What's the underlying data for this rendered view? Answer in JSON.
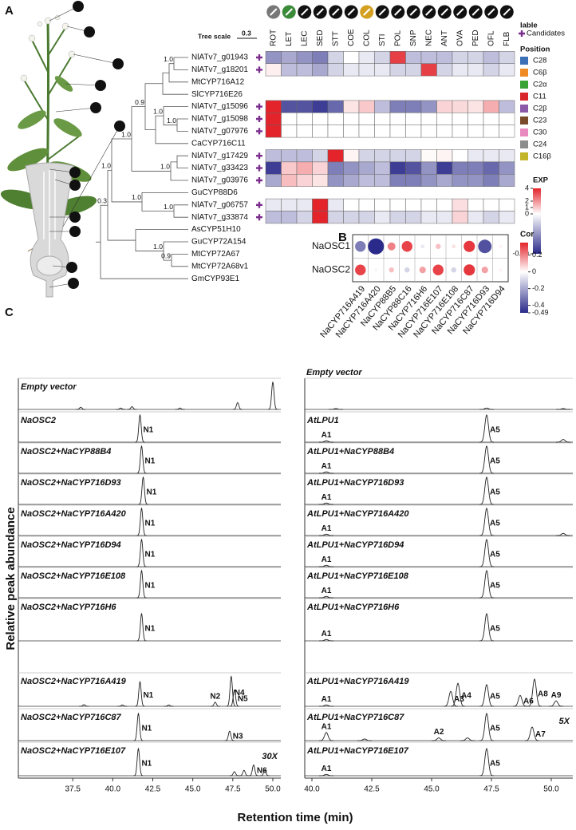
{
  "panel_a": {
    "label": "A",
    "tree_scale": {
      "title": "Tree scale",
      "value": "0.3"
    },
    "columns": [
      "ROT",
      "LET",
      "LEC",
      "SED",
      "STT",
      "COE",
      "COL",
      "STI",
      "POL",
      "SNP",
      "NEC",
      "ANT",
      "OVA",
      "PED",
      "OFL",
      "FLB"
    ],
    "leaves": [
      {
        "name": "NlATv7_g01943",
        "candidate": true,
        "exp": [
          -0.5,
          -0.4,
          -0.5,
          -0.6,
          -0.2,
          0,
          -0.1,
          -0.2,
          3.5,
          -0.3,
          -0.3,
          -0.3,
          -0.2,
          -0.2,
          -0.3,
          -0.2
        ]
      },
      {
        "name": "NlATv7_g18201",
        "candidate": true,
        "exp": [
          0.3,
          -0.3,
          -0.3,
          -0.4,
          -0.2,
          -0.1,
          -0.1,
          -0.1,
          -0.2,
          -0.2,
          3.5,
          -0.2,
          -0.1,
          -0.1,
          -0.2,
          -0.1
        ]
      },
      {
        "name": "MtCYP716A12",
        "position": "C28"
      },
      {
        "name": "SlCYP716E26",
        "position": "C6β"
      },
      {
        "name": "NlATv7_g15096",
        "candidate": true,
        "exp": [
          4,
          -0.8,
          -0.8,
          -0.9,
          -0.7,
          0.5,
          1,
          -0.3,
          -0.6,
          -0.6,
          -0.5,
          0.8,
          0.7,
          0.5,
          1.5,
          -0.3
        ]
      },
      {
        "name": "NlATv7_g15098",
        "candidate": true,
        "exp": [
          4,
          0,
          0,
          0,
          0,
          0,
          0,
          0,
          0,
          0,
          0,
          0,
          0,
          0,
          0,
          0
        ]
      },
      {
        "name": "NlATv7_g07976",
        "candidate": true,
        "exp": [
          4,
          0,
          0,
          0,
          0,
          0,
          0,
          0,
          0,
          0,
          0,
          0,
          0,
          0,
          0,
          0
        ]
      },
      {
        "name": "CaCYP716C11",
        "position": "C2α"
      },
      {
        "name": "NlATv7_g17429",
        "candidate": true,
        "exp": [
          -0.3,
          -0.3,
          -0.3,
          -0.2,
          4,
          0.2,
          -0.2,
          -0.2,
          -0.2,
          -0.2,
          0.1,
          0.2,
          0,
          -0.1,
          -0.1,
          -0.1
        ]
      },
      {
        "name": "NlATv7_g33423",
        "candidate": true,
        "exp": [
          -0.9,
          1,
          1.5,
          0.8,
          -0.6,
          -0.5,
          -0.4,
          -0.3,
          -0.9,
          -0.8,
          -0.5,
          -0.9,
          -0.6,
          -0.6,
          -0.7,
          -0.5
        ]
      },
      {
        "name": "NlATv7_g03976",
        "candidate": true,
        "exp": [
          -0.4,
          1.2,
          0.8,
          0.5,
          -0.5,
          -0.4,
          -0.3,
          -0.3,
          -0.6,
          -0.6,
          -0.5,
          -0.4,
          -0.5,
          -0.5,
          -0.6,
          -0.4
        ]
      },
      {
        "name": "GuCYP88D6",
        "position": "C11"
      },
      {
        "name": "NlATv7_g06757",
        "candidate": true,
        "exp": [
          -0.1,
          -0.1,
          -0.1,
          4,
          -0.1,
          0,
          0,
          0,
          0,
          0,
          0,
          0,
          0.6,
          0,
          0,
          0
        ]
      },
      {
        "name": "NlATv7_g33874",
        "candidate": true,
        "exp": [
          -0.3,
          -0.3,
          -0.2,
          4,
          -0.2,
          -0.2,
          -0.2,
          -0.1,
          -0.2,
          -0.2,
          -0.1,
          -0.1,
          0.8,
          -0.1,
          -0.2,
          -0.1
        ]
      },
      {
        "name": "AsCYP51H10",
        "position": "C16β"
      },
      {
        "name": "GuCYP72A154",
        "position": "C30"
      },
      {
        "name": "MtCYP72A67",
        "position": "C2β"
      },
      {
        "name": "MtCYP72A68v1",
        "position": "C23"
      },
      {
        "name": "GmCYP93E1",
        "position": "C24"
      }
    ],
    "support": [
      "1.0",
      "1.0",
      "1.0",
      "0.9",
      "1.0",
      "1.0",
      "1.0",
      "1.0",
      "1.0",
      "0.9",
      "1.0",
      "0.3"
    ],
    "legend": {
      "candidate_title": "lable",
      "candidate_label": "Candidates",
      "candidate_color": "#7b2d8e",
      "position_title": "Position",
      "positions": [
        {
          "label": "C28",
          "color": "#3b6fb6"
        },
        {
          "label": "C6β",
          "color": "#f08a24"
        },
        {
          "label": "C2α",
          "color": "#3aa335"
        },
        {
          "label": "C11",
          "color": "#d8262a"
        },
        {
          "label": "C2β",
          "color": "#8a5aa8"
        },
        {
          "label": "C23",
          "color": "#7a4b2a"
        },
        {
          "label": "C30",
          "color": "#e889c0"
        },
        {
          "label": "C24",
          "color": "#8c8c8c"
        },
        {
          "label": "C16β",
          "color": "#c3b52a"
        }
      ]
    },
    "exp_scale": {
      "title": "EXP",
      "lim": [
        -0.99,
        4
      ],
      "ticks": [
        4,
        2,
        1,
        0,
        -0.99
      ],
      "low_color": "#2a2a8a",
      "mid_color": "#ffffff",
      "high_color": "#e3242b"
    }
  },
  "panel_b": {
    "label": "B",
    "rows": [
      "NaOSC1",
      "NaOSC2"
    ],
    "columns": [
      "NaCYP716A419",
      "NaCYP716A420",
      "NaCYP88B5",
      "NaCYP88C16",
      "NaCYP716H6",
      "NaCYP716E107",
      "NaCYP716E108",
      "NaCYP716C87",
      "NaCYP716D93",
      "NaCYP716D94"
    ],
    "values": [
      [
        -0.3,
        -0.49,
        0.2,
        0.3,
        -0.05,
        0.1,
        0.05,
        0.32,
        -0.4,
        0.02
      ],
      [
        0.3,
        -0.02,
        0.1,
        -0.1,
        0.15,
        0.3,
        -0.1,
        0.32,
        0.15,
        0.02
      ]
    ],
    "scale": {
      "title": "Cor",
      "lim": [
        -0.49,
        0.35
      ],
      "ticks": [
        0.2,
        0,
        -0.2,
        -0.4,
        -0.49
      ],
      "low_color": "#2a2a8a",
      "mid_color": "#ffffff",
      "high_color": "#e3242b"
    }
  },
  "panel_c": {
    "label": "C",
    "y_label": "Relative peak abundance",
    "x_label": "Retention time (min)",
    "panels": [
      {
        "xlim": [
          34.1,
          50.5
        ],
        "xticks": [
          37.5,
          {
            "value": 40,
            "label": "40.0"
          },
          42.5,
          {
            "value": 45,
            "label": "45.0"
          },
          47.5,
          {
            "value": 50,
            "label": "50.0"
          }
        ],
        "traces": [
          {
            "label": "Empty vector",
            "peaks": [
              {
                "rt": 38.0,
                "height": 0.08
              },
              {
                "rt": 40.5,
                "height": 0.05
              },
              {
                "rt": 41.2,
                "height": 0.1
              },
              {
                "rt": 44.2,
                "height": 0.05
              },
              {
                "rt": 47.8,
                "height": 0.25
              },
              {
                "rt": 50.0,
                "height": 1.0
              }
            ]
          },
          {
            "label": "NaOSC2",
            "peaks": [
              {
                "rt": 41.7,
                "height": 1,
                "label": "N1"
              }
            ]
          },
          {
            "label": "NaOSC2+NaCYP88B4",
            "peaks": [
              {
                "rt": 41.8,
                "height": 1,
                "label": "N1"
              }
            ]
          },
          {
            "label": "NaOSC2+NaCYP716D93",
            "peaks": [
              {
                "rt": 41.9,
                "height": 1,
                "label": "N1"
              }
            ]
          },
          {
            "label": "NaOSC2+NaCYP716A420",
            "peaks": [
              {
                "rt": 41.8,
                "height": 1,
                "label": "N1"
              }
            ]
          },
          {
            "label": "NaOSC2+NaCYP716D94",
            "peaks": [
              {
                "rt": 41.8,
                "height": 1,
                "label": "N1"
              }
            ]
          },
          {
            "label": "NaOSC2+NaCYP716E108",
            "peaks": [
              {
                "rt": 41.8,
                "height": 1,
                "label": "N1"
              }
            ]
          },
          {
            "label": "NaOSC2+NaCYP716H6",
            "peaks": [
              {
                "rt": 41.8,
                "height": 1,
                "label": "N1"
              }
            ]
          },
          {
            "label": "NaOSC2+NaCYP716A419",
            "peaks": [
              {
                "rt": 38.2,
                "height": 0.06
              },
              {
                "rt": 40.6,
                "height": 0.05
              },
              {
                "rt": 41.7,
                "height": 0.9,
                "label": "N1"
              },
              {
                "rt": 43.5,
                "height": 0.05
              },
              {
                "rt": 46.4,
                "height": 0.15,
                "label": "N2"
              },
              {
                "rt": 47.4,
                "height": 1.1,
                "label": "N4"
              },
              {
                "rt": 47.6,
                "height": 0.6,
                "label": "N5"
              }
            ]
          },
          {
            "label": "NaOSC2+NaCYP716C87",
            "peaks": [
              {
                "rt": 41.6,
                "height": 1,
                "label": "N1"
              },
              {
                "rt": 47.3,
                "height": 0.35,
                "label": "N3"
              }
            ]
          },
          {
            "label": "NaOSC2+NaCYP716E107",
            "annotation": "30X",
            "peaks": [
              {
                "rt": 41.6,
                "height": 1,
                "label": "N1"
              },
              {
                "rt": 47.6,
                "height": 0.15
              },
              {
                "rt": 48.2,
                "height": 0.2
              },
              {
                "rt": 48.8,
                "height": 0.4,
                "label": "N6"
              },
              {
                "rt": 49.5,
                "height": 0.2
              }
            ]
          }
        ]
      },
      {
        "title": "Empty vector",
        "xlim": [
          39.7,
          50.9
        ],
        "xticks": [
          {
            "value": 40,
            "label": "40.0"
          },
          42.5,
          {
            "value": 45,
            "label": "45.0"
          },
          47.5,
          {
            "value": 50,
            "label": "50.0"
          }
        ],
        "traces": [
          {
            "peaks": [
              {
                "rt": 41.0,
                "height": 0.03
              },
              {
                "rt": 47.3,
                "height": 0.05
              },
              {
                "rt": 50.5,
                "height": 0.03
              }
            ]
          },
          {
            "label": "AtLPU1",
            "peaks": [
              {
                "rt": 40.6,
                "height": 0.05,
                "label": "A1"
              },
              {
                "rt": 47.3,
                "height": 1,
                "label": "A5"
              },
              {
                "rt": 50.5,
                "height": 0.1
              }
            ]
          },
          {
            "label": "AtLPU1+NaCYP88B4",
            "peaks": [
              {
                "rt": 40.6,
                "height": 0.05,
                "label": "A1"
              },
              {
                "rt": 47.3,
                "height": 1,
                "label": "A5"
              }
            ]
          },
          {
            "label": "AtLPU1+NaCYP716D93",
            "peaks": [
              {
                "rt": 40.6,
                "height": 0.05,
                "label": "A1"
              },
              {
                "rt": 47.3,
                "height": 1,
                "label": "A5"
              }
            ]
          },
          {
            "label": "AtLPU1+NaCYP716A420",
            "peaks": [
              {
                "rt": 40.6,
                "height": 0.05,
                "label": "A1"
              },
              {
                "rt": 47.3,
                "height": 1,
                "label": "A5"
              },
              {
                "rt": 50.5,
                "height": 0.08
              }
            ]
          },
          {
            "label": "AtLPU1+NaCYP716D94",
            "peaks": [
              {
                "rt": 40.6,
                "height": 0.05,
                "label": "A1"
              },
              {
                "rt": 47.3,
                "height": 1,
                "label": "A5"
              }
            ]
          },
          {
            "label": "AtLPU1+NaCYP716E108",
            "peaks": [
              {
                "rt": 40.6,
                "height": 0.05,
                "label": "A1"
              },
              {
                "rt": 47.3,
                "height": 1,
                "label": "A5"
              }
            ]
          },
          {
            "label": "AtLPU1+NaCYP716H6",
            "peaks": [
              {
                "rt": 40.6,
                "height": 0.05,
                "label": "A1"
              },
              {
                "rt": 47.3,
                "height": 1,
                "label": "A5"
              }
            ]
          },
          {
            "label": "AtLPU1+NaCYP716A419",
            "peaks": [
              {
                "rt": 40.6,
                "height": 0.05,
                "label": "A1"
              },
              {
                "rt": 45.8,
                "height": 0.55,
                "label": "A3"
              },
              {
                "rt": 46.1,
                "height": 0.85,
                "label": "A4"
              },
              {
                "rt": 47.3,
                "height": 0.8,
                "label": "A5"
              },
              {
                "rt": 48.7,
                "height": 0.4,
                "label": "A6"
              },
              {
                "rt": 49.3,
                "height": 1.0,
                "label": "A8"
              },
              {
                "rt": 50.2,
                "height": 0.2,
                "label": "A9"
              }
            ]
          },
          {
            "label": "AtLPU1+NaCYP716C87",
            "annotation": "5X",
            "peaks": [
              {
                "rt": 40.6,
                "height": 0.3,
                "label": "A1"
              },
              {
                "rt": 42.2,
                "height": 0.06
              },
              {
                "rt": 45.3,
                "height": 0.1,
                "label": "A2"
              },
              {
                "rt": 46.5,
                "height": 0.1
              },
              {
                "rt": 47.3,
                "height": 1,
                "label": "A5"
              },
              {
                "rt": 49.2,
                "height": 0.5,
                "label": "A7"
              }
            ]
          },
          {
            "label": "AtLPU1+NaCYP716E107",
            "peaks": [
              {
                "rt": 40.6,
                "height": 0.05,
                "label": "A1"
              },
              {
                "rt": 47.3,
                "height": 1,
                "label": "A5"
              }
            ]
          }
        ]
      }
    ]
  }
}
